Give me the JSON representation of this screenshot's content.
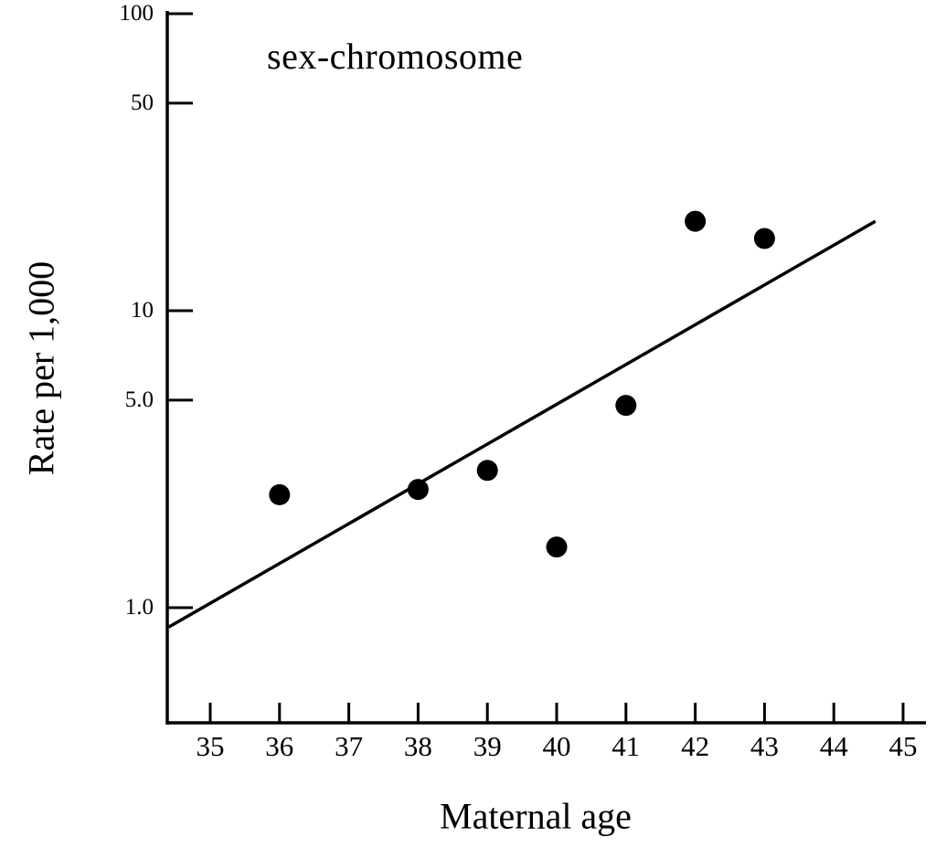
{
  "chart_data": {
    "type": "scatter",
    "series_label": "sex-chromosome",
    "xlabel": "Maternal age",
    "ylabel": "Rate per 1,000",
    "y_scale": "log",
    "grid": false,
    "legend": false,
    "xlim": [
      34.4,
      45.4
    ],
    "ylim": [
      0.41,
      100
    ],
    "x_ticks": [
      35,
      36,
      37,
      38,
      39,
      40,
      41,
      42,
      43,
      44,
      45
    ],
    "y_ticks": [
      {
        "value": 100,
        "label": "100"
      },
      {
        "value": 50,
        "label": "50"
      },
      {
        "value": 10,
        "label": "10"
      },
      {
        "value": 5,
        "label": "5.0"
      },
      {
        "value": 1,
        "label": "1.0"
      }
    ],
    "points": [
      {
        "age": 36,
        "rate": 2.4
      },
      {
        "age": 38,
        "rate": 2.5
      },
      {
        "age": 39,
        "rate": 2.9
      },
      {
        "age": 40,
        "rate": 1.6
      },
      {
        "age": 41,
        "rate": 4.8
      },
      {
        "age": 42,
        "rate": 20
      },
      {
        "age": 43,
        "rate": 17.5
      }
    ],
    "trend_line": {
      "from": {
        "age": 34.4,
        "rate": 0.86
      },
      "to": {
        "age": 44.6,
        "rate": 20.0
      }
    },
    "ink_color": "#000000",
    "background_color": "#ffffff"
  }
}
